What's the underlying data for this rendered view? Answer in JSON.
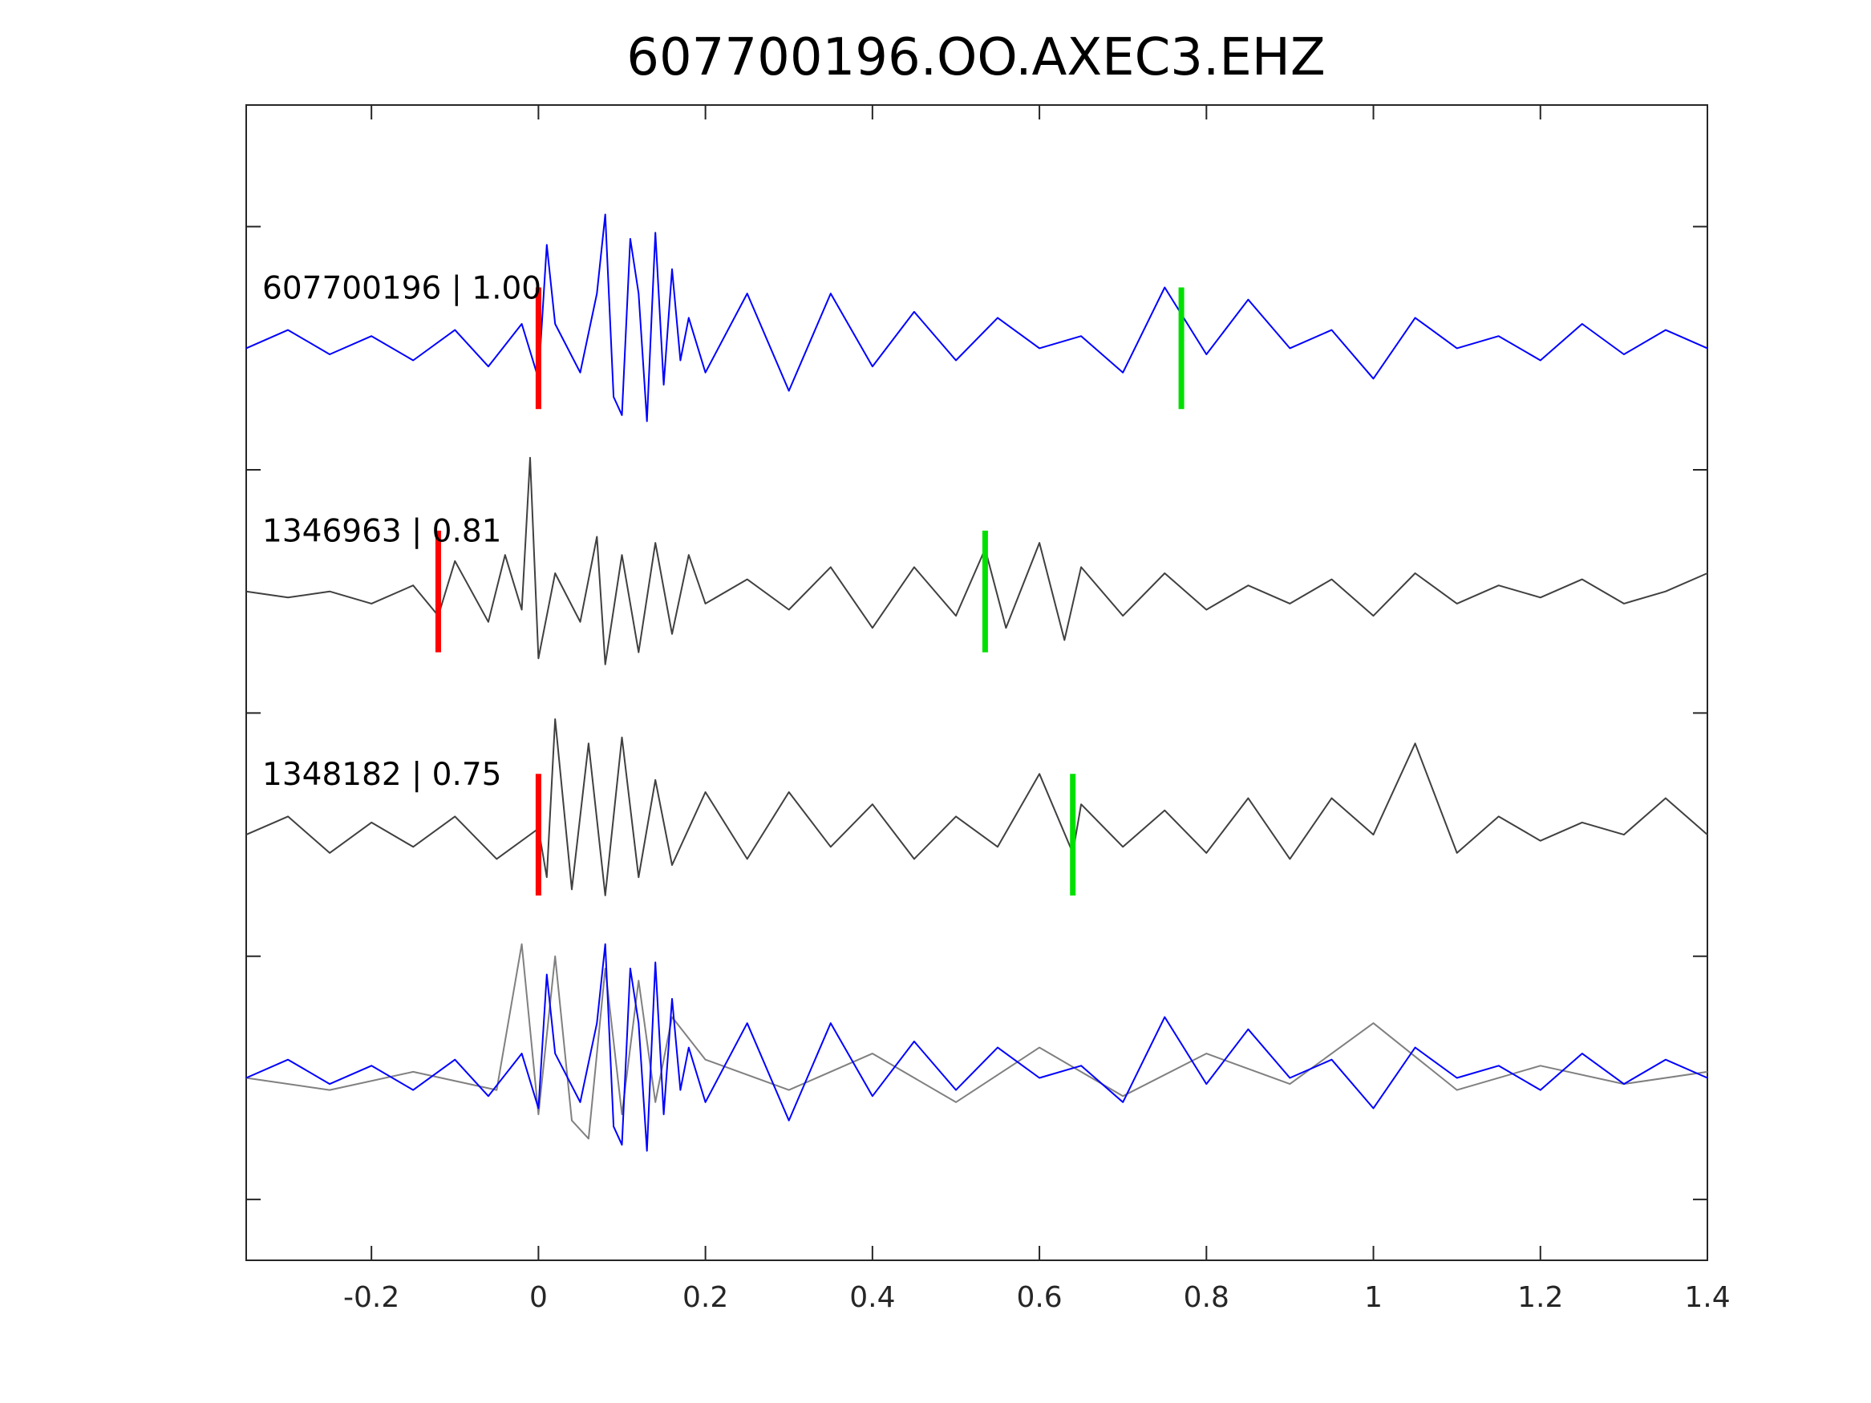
{
  "chart_data": {
    "type": "line",
    "title": "607700196.OO.AXEC3.EHZ",
    "xlabel": "",
    "ylabel": "",
    "xlim": [
      -0.35,
      1.4
    ],
    "ylim": [
      0,
      19
    ],
    "xticks": [
      -0.2,
      0,
      0.2,
      0.4,
      0.6,
      0.8,
      1.0,
      1.2,
      1.4
    ],
    "xtick_labels": [
      "-0.2",
      "0",
      "0.2",
      "0.4",
      "0.6",
      "0.8",
      "1",
      "1.2",
      "1.4"
    ],
    "ytick_values": [
      1,
      5,
      9,
      13,
      17
    ],
    "grid": false,
    "legend": "none",
    "colors": {
      "template_trace": "#0000ff",
      "match_trace": "#404040",
      "overlay_match_trace": "#808080",
      "p_pick": "#ff0000",
      "s_pick": "#00e000",
      "axis": "#262626"
    },
    "series": [
      {
        "label": "607700196 | 1.00",
        "baseline": 15,
        "color_key": "template_trace",
        "p_pick": 0.0,
        "s_pick": 0.77,
        "x": [
          -0.35,
          -0.3,
          -0.25,
          -0.2,
          -0.15,
          -0.1,
          -0.06,
          -0.02,
          0.0,
          0.01,
          0.02,
          0.05,
          0.07,
          0.08,
          0.09,
          0.1,
          0.11,
          0.12,
          0.13,
          0.14,
          0.15,
          0.16,
          0.17,
          0.18,
          0.2,
          0.25,
          0.3,
          0.35,
          0.4,
          0.45,
          0.5,
          0.55,
          0.6,
          0.65,
          0.7,
          0.75,
          0.8,
          0.85,
          0.9,
          0.95,
          1.0,
          1.05,
          1.1,
          1.15,
          1.2,
          1.25,
          1.3,
          1.35,
          1.4
        ],
        "y": [
          15.0,
          15.3,
          14.9,
          15.2,
          14.8,
          15.3,
          14.7,
          15.4,
          14.5,
          16.7,
          15.4,
          14.6,
          15.9,
          17.2,
          14.2,
          13.9,
          16.8,
          15.9,
          13.8,
          16.9,
          14.4,
          16.3,
          14.8,
          15.5,
          14.6,
          15.9,
          14.3,
          15.9,
          14.7,
          15.6,
          14.8,
          15.5,
          15.0,
          15.2,
          14.6,
          16.0,
          14.9,
          15.8,
          15.0,
          15.3,
          14.5,
          15.5,
          15.0,
          15.2,
          14.8,
          15.4,
          14.9,
          15.3,
          15.0
        ]
      },
      {
        "label": "1346963 | 0.81",
        "baseline": 11,
        "color_key": "match_trace",
        "p_pick": -0.12,
        "s_pick": 0.535,
        "x": [
          -0.35,
          -0.3,
          -0.25,
          -0.2,
          -0.15,
          -0.12,
          -0.1,
          -0.06,
          -0.04,
          -0.02,
          -0.01,
          0.0,
          0.02,
          0.05,
          0.07,
          0.08,
          0.1,
          0.12,
          0.14,
          0.16,
          0.18,
          0.2,
          0.25,
          0.3,
          0.35,
          0.4,
          0.45,
          0.5,
          0.535,
          0.56,
          0.6,
          0.63,
          0.65,
          0.7,
          0.75,
          0.8,
          0.85,
          0.9,
          0.95,
          1.0,
          1.05,
          1.1,
          1.15,
          1.2,
          1.25,
          1.3,
          1.35,
          1.4
        ],
        "y": [
          11.0,
          10.9,
          11.0,
          10.8,
          11.1,
          10.6,
          11.5,
          10.5,
          11.6,
          10.7,
          13.2,
          9.9,
          11.3,
          10.5,
          11.9,
          9.8,
          11.6,
          10.0,
          11.8,
          10.3,
          11.6,
          10.8,
          11.2,
          10.7,
          11.4,
          10.4,
          11.4,
          10.6,
          11.7,
          10.4,
          11.8,
          10.2,
          11.4,
          10.6,
          11.3,
          10.7,
          11.1,
          10.8,
          11.2,
          10.6,
          11.3,
          10.8,
          11.1,
          10.9,
          11.2,
          10.8,
          11.0,
          11.3
        ]
      },
      {
        "label": "1348182 | 0.75",
        "baseline": 7,
        "color_key": "match_trace",
        "p_pick": 0.0,
        "s_pick": 0.64,
        "x": [
          -0.35,
          -0.3,
          -0.25,
          -0.2,
          -0.15,
          -0.1,
          -0.05,
          0.0,
          0.01,
          0.02,
          0.04,
          0.06,
          0.08,
          0.1,
          0.12,
          0.14,
          0.16,
          0.2,
          0.25,
          0.3,
          0.35,
          0.4,
          0.45,
          0.5,
          0.55,
          0.6,
          0.64,
          0.65,
          0.7,
          0.75,
          0.8,
          0.85,
          0.9,
          0.95,
          1.0,
          1.05,
          1.1,
          1.15,
          1.2,
          1.25,
          1.3,
          1.35,
          1.4
        ],
        "y": [
          7.0,
          7.3,
          6.7,
          7.2,
          6.8,
          7.3,
          6.6,
          7.1,
          6.3,
          8.9,
          6.1,
          8.5,
          6.0,
          8.6,
          6.3,
          7.9,
          6.5,
          7.7,
          6.6,
          7.7,
          6.8,
          7.5,
          6.6,
          7.3,
          6.8,
          8.0,
          6.7,
          7.5,
          6.8,
          7.4,
          6.7,
          7.6,
          6.6,
          7.6,
          7.0,
          8.5,
          6.7,
          7.3,
          6.9,
          7.2,
          7.0,
          7.6,
          7.0
        ]
      },
      {
        "label": "",
        "baseline": 3,
        "color_key": "overlay_match_trace",
        "p_pick": null,
        "s_pick": null,
        "x": [
          -0.35,
          -0.25,
          -0.15,
          -0.05,
          -0.02,
          0.0,
          0.02,
          0.04,
          0.06,
          0.08,
          0.1,
          0.12,
          0.14,
          0.16,
          0.2,
          0.3,
          0.4,
          0.5,
          0.6,
          0.7,
          0.8,
          0.9,
          1.0,
          1.1,
          1.2,
          1.3,
          1.4
        ],
        "y": [
          3.0,
          2.8,
          3.1,
          2.8,
          5.2,
          2.4,
          5.0,
          2.3,
          2.0,
          4.8,
          2.4,
          4.6,
          2.6,
          4.0,
          3.3,
          2.8,
          3.4,
          2.6,
          3.5,
          2.7,
          3.4,
          2.9,
          3.9,
          2.8,
          3.2,
          2.9,
          3.1
        ]
      },
      {
        "label": "",
        "baseline": 3,
        "color_key": "template_trace",
        "p_pick": null,
        "s_pick": null,
        "x": [
          -0.35,
          -0.3,
          -0.25,
          -0.2,
          -0.15,
          -0.1,
          -0.06,
          -0.02,
          0.0,
          0.01,
          0.02,
          0.05,
          0.07,
          0.08,
          0.09,
          0.1,
          0.11,
          0.12,
          0.13,
          0.14,
          0.15,
          0.16,
          0.17,
          0.18,
          0.2,
          0.25,
          0.3,
          0.35,
          0.4,
          0.45,
          0.5,
          0.55,
          0.6,
          0.65,
          0.7,
          0.75,
          0.8,
          0.85,
          0.9,
          0.95,
          1.0,
          1.05,
          1.1,
          1.15,
          1.2,
          1.25,
          1.3,
          1.35,
          1.4
        ],
        "y": [
          3.0,
          3.3,
          2.9,
          3.2,
          2.8,
          3.3,
          2.7,
          3.4,
          2.5,
          4.7,
          3.4,
          2.6,
          3.9,
          5.2,
          2.2,
          1.9,
          4.8,
          3.9,
          1.8,
          4.9,
          2.4,
          4.3,
          2.8,
          3.5,
          2.6,
          3.9,
          2.3,
          3.9,
          2.7,
          3.6,
          2.8,
          3.5,
          3.0,
          3.2,
          2.6,
          4.0,
          2.9,
          3.8,
          3.0,
          3.3,
          2.5,
          3.5,
          3.0,
          3.2,
          2.8,
          3.4,
          2.9,
          3.3,
          3.0
        ]
      }
    ]
  }
}
